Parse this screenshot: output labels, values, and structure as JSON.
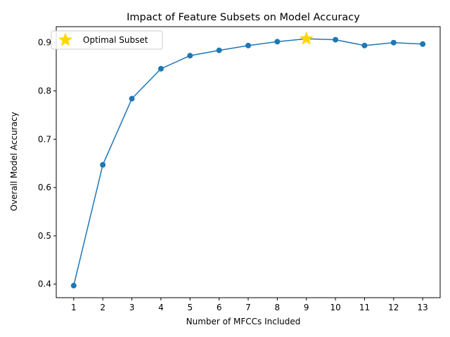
{
  "chart_data": {
    "type": "line",
    "title": "Impact of Feature Subsets on Model Accuracy",
    "xlabel": "Number of MFCCs Included",
    "ylabel": "Overall Model Accuracy",
    "x": [
      1,
      2,
      3,
      4,
      5,
      6,
      7,
      8,
      9,
      10,
      11,
      12,
      13
    ],
    "series": [
      {
        "values": [
          0.397,
          0.647,
          0.784,
          0.846,
          0.873,
          0.884,
          0.894,
          0.902,
          0.908,
          0.906,
          0.894,
          0.9,
          0.897
        ],
        "color": "#1f77b4",
        "marker": "circle"
      }
    ],
    "highlight": {
      "name": "Optimal Subset",
      "x": 9,
      "y": 0.908,
      "color": "#ffd700",
      "marker": "star"
    },
    "xlim": [
      0.4,
      13.6
    ],
    "ylim": [
      0.372,
      0.933
    ],
    "xticks": [
      1,
      2,
      3,
      4,
      5,
      6,
      7,
      8,
      9,
      10,
      11,
      12,
      13
    ],
    "yticks": [
      0.4,
      0.5,
      0.6,
      0.7,
      0.8,
      0.9
    ],
    "grid": false,
    "legend": {
      "position": "top-left",
      "entries": [
        "Optimal Subset"
      ]
    }
  }
}
